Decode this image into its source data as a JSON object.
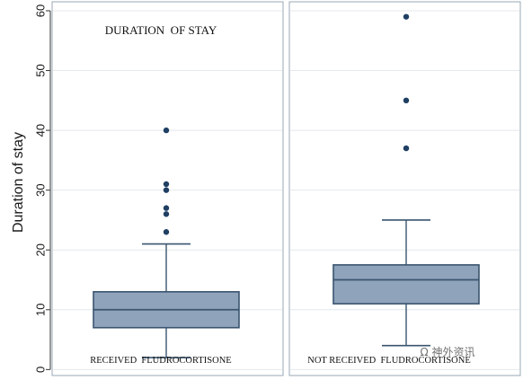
{
  "chart_data": {
    "type": "box",
    "ylabel": "Duration of stay",
    "annotation": "DURATION  OF STAY",
    "ylim": [
      -1,
      61.5
    ],
    "yticks": [
      0,
      10,
      20,
      30,
      40,
      50,
      60
    ],
    "grid": true,
    "groups": [
      {
        "label": "RECEIVED  FLUDROCORTISONE",
        "whisker_low": 2,
        "q1": 7,
        "median": 10,
        "q3": 13,
        "whisker_high": 21,
        "outliers": [
          23,
          26,
          27,
          30,
          31,
          40
        ]
      },
      {
        "label": "NOT RECEIVED  FLUDROCORTISONE",
        "whisker_low": 4,
        "q1": 11,
        "median": 15,
        "q3": 17.5,
        "whisker_high": 25,
        "outliers": [
          37,
          45,
          59
        ]
      }
    ]
  },
  "watermark": "Ω 神外资讯",
  "colors": {
    "box_fill": "#8fa3ba",
    "box_stroke": "#3a5570",
    "outlier": "#1f3f63",
    "grid": "#e4e8ec",
    "frame": "#9aa8b6",
    "annotation_bg": "#ffffff"
  }
}
